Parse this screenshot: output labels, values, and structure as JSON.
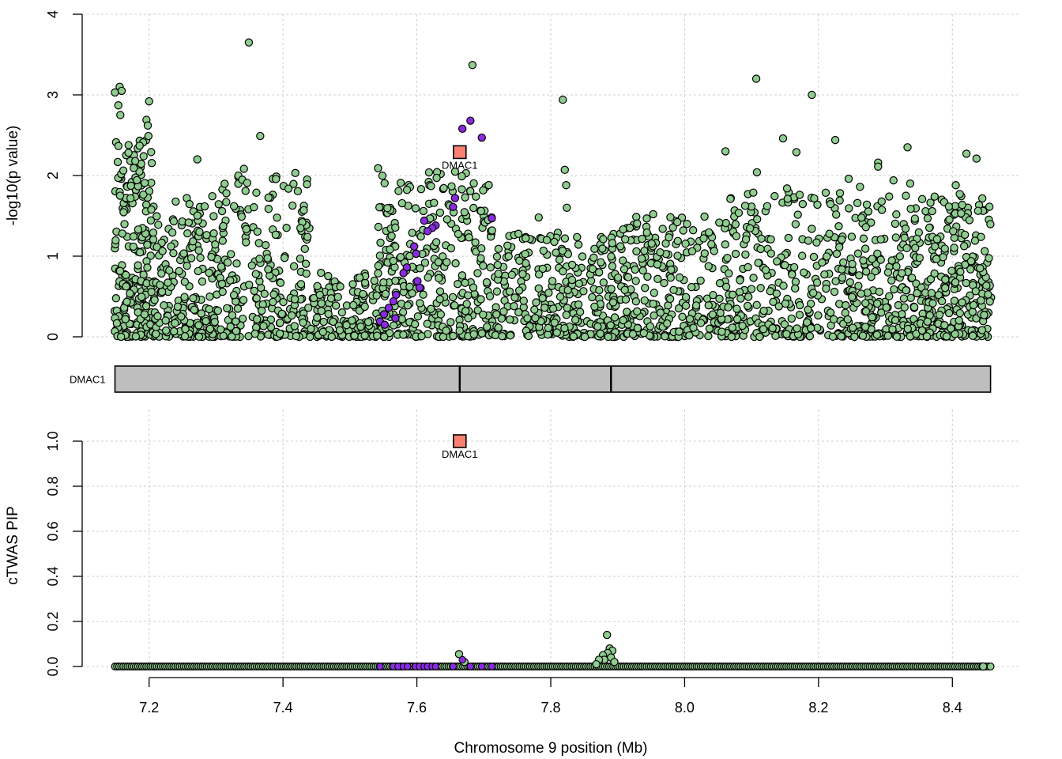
{
  "chart_data": [
    {
      "type": "scatter",
      "panel": "top",
      "ylabel": "-log10(p value)",
      "xlabel": "",
      "xlim": [
        7.1,
        8.5
      ],
      "ylim": [
        0,
        4
      ],
      "yticks": [
        0,
        1,
        2,
        3,
        4
      ],
      "xgrid": [
        7.2,
        7.4,
        7.6,
        7.8,
        8.0,
        8.2,
        8.4
      ],
      "grid": true,
      "colors": {
        "snp": "#8fcc8f",
        "highlight_snp": "#8a2be2",
        "gene": "#fa8072"
      },
      "gene_points": [
        {
          "label": "DMAC1",
          "x": 7.664,
          "y": 2.29
        }
      ],
      "highlight_snps": [
        [
          7.68,
          2.68
        ],
        [
          7.668,
          2.58
        ],
        [
          7.697,
          2.47
        ],
        [
          7.657,
          1.72
        ],
        [
          7.654,
          1.61
        ],
        [
          7.628,
          1.38
        ],
        [
          7.623,
          1.35
        ],
        [
          7.616,
          1.31
        ],
        [
          7.611,
          1.44
        ],
        [
          7.596,
          1.12
        ],
        [
          7.599,
          1.03
        ],
        [
          7.585,
          0.86
        ],
        [
          7.58,
          0.79
        ],
        [
          7.601,
          0.69
        ],
        [
          7.604,
          0.61
        ],
        [
          7.569,
          0.52
        ],
        [
          7.565,
          0.44
        ],
        [
          7.558,
          0.36
        ],
        [
          7.551,
          0.28
        ],
        [
          7.545,
          0.19
        ],
        [
          7.568,
          0.23
        ],
        [
          7.552,
          0.15
        ],
        [
          7.712,
          1.47
        ]
      ],
      "top_snps": [
        [
          7.349,
          3.65
        ],
        [
          7.683,
          3.37
        ],
        [
          8.107,
          3.2
        ],
        [
          8.19,
          3.0
        ],
        [
          7.818,
          2.94
        ],
        [
          7.2,
          2.92
        ],
        [
          7.156,
          3.1
        ],
        [
          7.149,
          3.03
        ],
        [
          7.159,
          3.05
        ],
        [
          7.154,
          2.87
        ],
        [
          7.157,
          2.75
        ],
        [
          7.196,
          2.69
        ],
        [
          7.198,
          2.62
        ],
        [
          7.199,
          2.49
        ],
        [
          7.366,
          2.49
        ],
        [
          8.147,
          2.46
        ],
        [
          8.225,
          2.44
        ],
        [
          8.333,
          2.35
        ],
        [
          8.061,
          2.3
        ],
        [
          8.167,
          2.29
        ],
        [
          8.421,
          2.27
        ],
        [
          8.436,
          2.21
        ],
        [
          7.272,
          2.2
        ],
        [
          8.289,
          2.16
        ],
        [
          8.289,
          2.11
        ],
        [
          7.542,
          2.09
        ],
        [
          7.821,
          2.07
        ],
        [
          8.108,
          2.04
        ],
        [
          8.245,
          1.96
        ],
        [
          8.312,
          1.94
        ],
        [
          8.337,
          1.9
        ],
        [
          8.262,
          1.86
        ],
        [
          8.405,
          1.88
        ],
        [
          7.823,
          1.88
        ],
        [
          8.153,
          1.84
        ],
        [
          7.824,
          1.6
        ],
        [
          7.782,
          1.48
        ],
        [
          7.953,
          1.52
        ],
        [
          8.411,
          1.77
        ]
      ],
      "clusters": [
        {
          "x0": 7.148,
          "x1": 7.208,
          "ymax": 2.45,
          "n": 230
        },
        {
          "x0": 7.208,
          "x1": 7.305,
          "ymax": 1.75,
          "n": 210
        },
        {
          "x0": 7.305,
          "x1": 7.44,
          "ymax": 2.1,
          "n": 230
        },
        {
          "x0": 7.44,
          "x1": 7.54,
          "ymax": 0.8,
          "n": 150
        },
        {
          "x0": 7.54,
          "x1": 7.715,
          "ymax": 2.05,
          "n": 320
        },
        {
          "x0": 7.715,
          "x1": 7.9,
          "ymax": 1.3,
          "n": 290
        },
        {
          "x0": 7.9,
          "x1": 8.05,
          "ymax": 1.5,
          "n": 240
        },
        {
          "x0": 8.05,
          "x1": 8.25,
          "ymax": 1.8,
          "n": 300
        },
        {
          "x0": 8.25,
          "x1": 8.36,
          "ymax": 1.75,
          "n": 220
        },
        {
          "x0": 8.36,
          "x1": 8.458,
          "ymax": 1.75,
          "n": 240
        }
      ]
    },
    {
      "type": "gene_track",
      "panel": "middle",
      "label": "DMAC1",
      "start": 7.149,
      "end": 8.457,
      "dividers": [
        7.664,
        7.89
      ]
    },
    {
      "type": "scatter",
      "panel": "bottom",
      "ylabel": "cTWAS PIP",
      "xlabel": "Chromosome 9 position (Mb)",
      "xlim": [
        7.1,
        8.5
      ],
      "ylim": [
        0,
        1.0
      ],
      "yticks": [
        0.0,
        0.2,
        0.4,
        0.6,
        0.8,
        1.0
      ],
      "xticks": [
        7.2,
        7.4,
        7.6,
        7.8,
        8.0,
        8.2,
        8.4
      ],
      "grid": true,
      "gene_points": [
        {
          "label": "DMAC1",
          "x": 7.664,
          "y": 1.0
        }
      ],
      "pip_green": [
        [
          7.884,
          0.14
        ],
        [
          7.888,
          0.08
        ],
        [
          7.892,
          0.07
        ],
        [
          7.885,
          0.06
        ],
        [
          7.878,
          0.05
        ],
        [
          7.89,
          0.04
        ],
        [
          7.88,
          0.03
        ],
        [
          7.872,
          0.03
        ],
        [
          7.895,
          0.02
        ],
        [
          7.868,
          0.01
        ],
        [
          7.663,
          0.055
        ],
        [
          7.671,
          0.02
        ]
      ],
      "pip_purple": [
        [
          7.545,
          0.0
        ],
        [
          7.565,
          0.0
        ],
        [
          7.572,
          0.0
        ],
        [
          7.58,
          0.0
        ],
        [
          7.586,
          0.0
        ],
        [
          7.598,
          0.0
        ],
        [
          7.604,
          0.0
        ],
        [
          7.611,
          0.0
        ],
        [
          7.616,
          0.0
        ],
        [
          7.623,
          0.0
        ],
        [
          7.628,
          0.0
        ],
        [
          7.654,
          0.0
        ],
        [
          7.668,
          0.03
        ],
        [
          7.68,
          0.0
        ],
        [
          7.697,
          0.0
        ],
        [
          7.712,
          0.0
        ]
      ],
      "baseline_range": [
        7.149,
        8.457
      ]
    }
  ]
}
